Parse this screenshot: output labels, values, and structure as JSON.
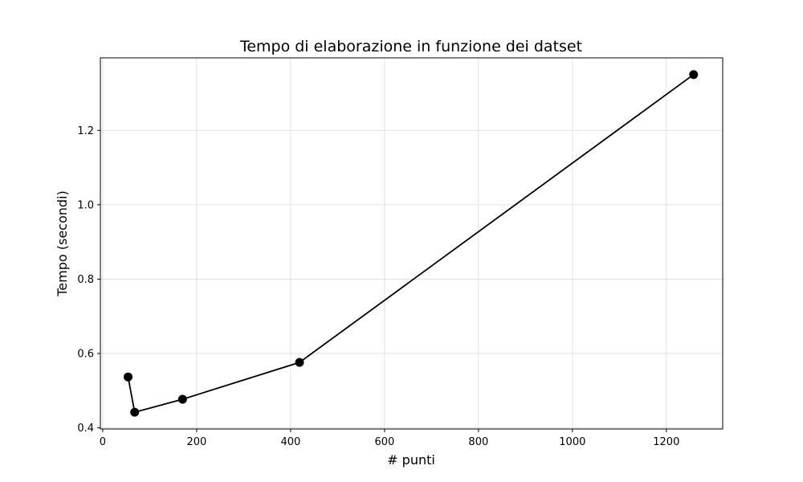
{
  "chart_data": {
    "type": "line",
    "title": "Tempo di elaborazione in funzione dei datset",
    "xlabel": "# punti",
    "ylabel": "Tempo (secondi)",
    "xlim": [
      -5,
      1320
    ],
    "ylim": [
      0.397,
      1.395
    ],
    "xticks": [
      0,
      200,
      400,
      600,
      800,
      1000,
      1200
    ],
    "yticks": [
      0.4,
      0.6,
      0.8,
      1.0,
      1.2
    ],
    "ytick_labels": [
      "0.4",
      "0.6",
      "0.8",
      "1.0",
      "1.2"
    ],
    "grid": true,
    "line_color": "#000000",
    "marker": "circle",
    "series": [
      {
        "x": [
          54,
          68,
          170,
          419,
          1258
        ],
        "y": [
          0.537,
          0.442,
          0.477,
          0.576,
          1.35
        ]
      }
    ]
  }
}
